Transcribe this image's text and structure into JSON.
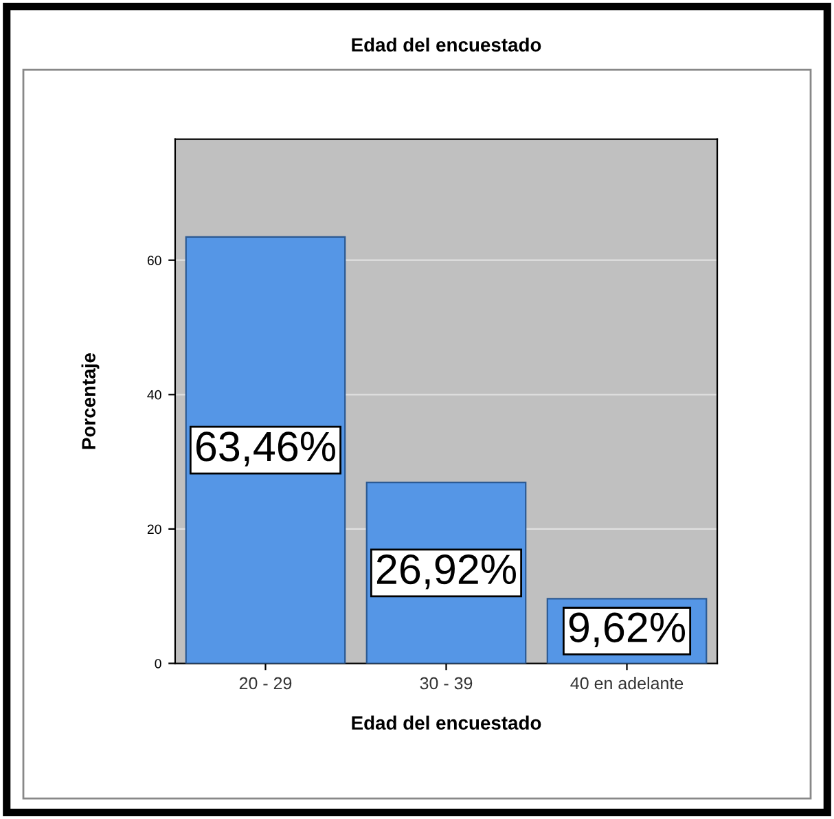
{
  "chart_data": {
    "type": "bar",
    "title": "Edad del encuestado",
    "xlabel": "Edad del encuestado",
    "ylabel": "Porcentaje",
    "categories": [
      "20 - 29",
      "30 - 39",
      "40 en adelante"
    ],
    "values": [
      63.46,
      26.92,
      9.62
    ],
    "value_labels": [
      "63,46%",
      "26,92%",
      "9,62%"
    ],
    "color": "#5596e6",
    "ylim": [
      0,
      78
    ],
    "yticks": [
      0,
      20,
      40,
      60
    ],
    "grid": "y",
    "legend": false
  }
}
